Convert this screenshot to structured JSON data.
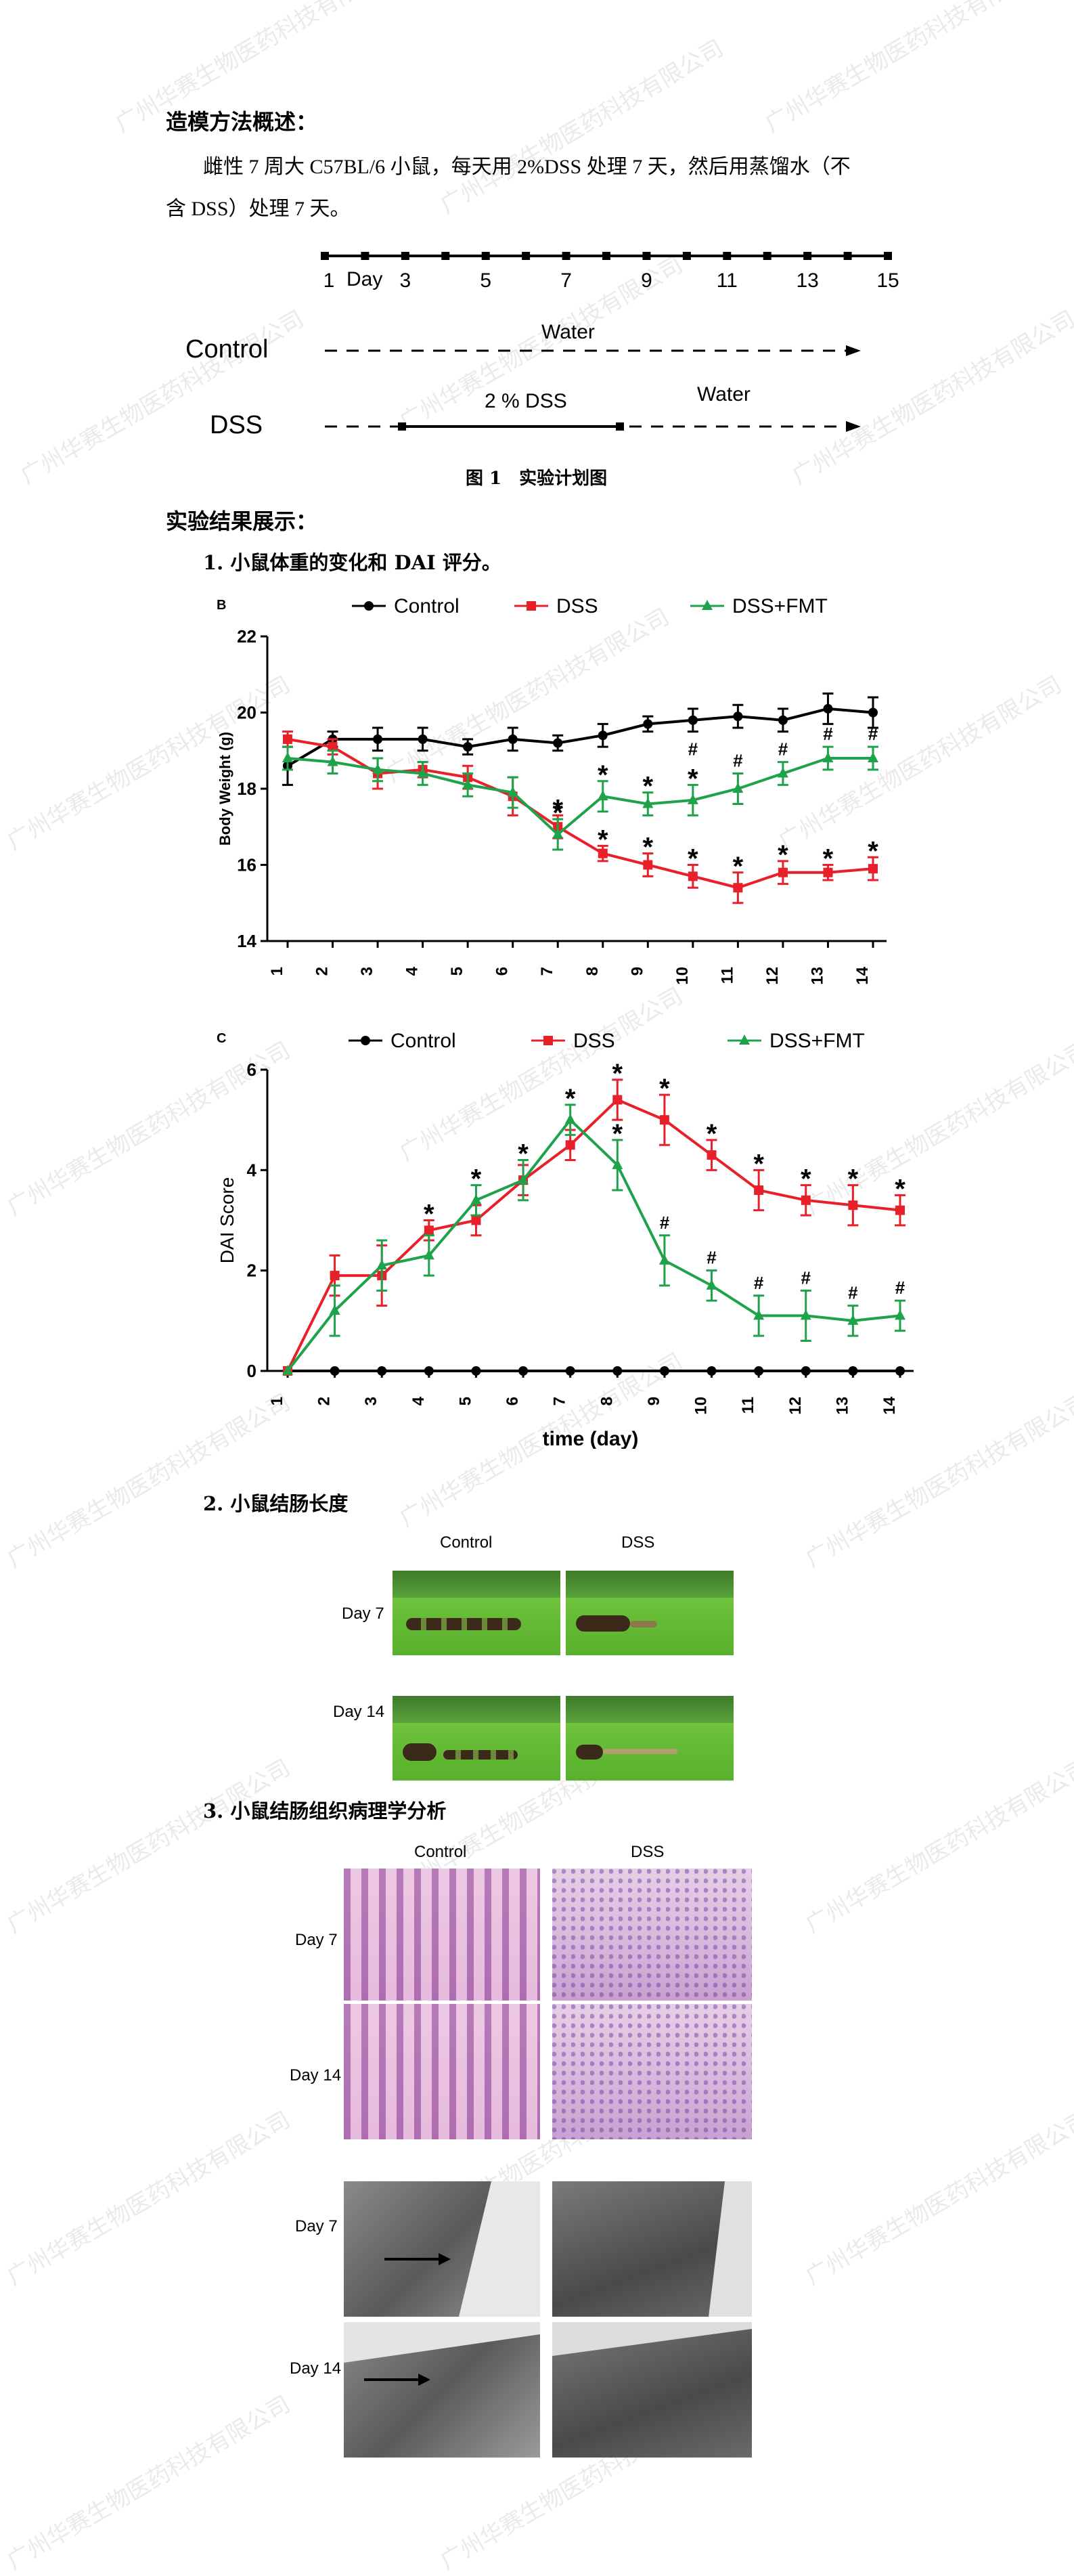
{
  "section1_title": "造模方法概述：",
  "method_text_line1": "雌性 7 周大 C57BL/6 小鼠，每天用 2%DSS 处理 7 天，然后用蒸馏水（不",
  "method_text_line2": "含 DSS）处理 7 天。",
  "timeline": {
    "day_label": "Day",
    "ticks": [
      "1",
      "3",
      "5",
      "7",
      "9",
      "11",
      "13",
      "15"
    ],
    "control_label": "Control",
    "control_water": "Water",
    "dss_label": "DSS",
    "dss_text": "2 % DSS",
    "dss_water": "Water"
  },
  "figure1_caption": "图 1　实验计划图",
  "section2_title": "实验结果展示：",
  "sub1_title": "1.  小鼠体重的变化和 DAI 评分。",
  "chart_data": [
    {
      "type": "line",
      "panel_label": "B",
      "ylabel": "Body Weight (g)",
      "xlabel": "",
      "ylim": [
        14,
        22
      ],
      "yticks": [
        "14",
        "16",
        "18",
        "20",
        "22"
      ],
      "x": [
        1,
        2,
        3,
        4,
        5,
        6,
        7,
        8,
        9,
        10,
        11,
        12,
        13,
        14
      ],
      "legend": "top",
      "series": [
        {
          "name": "Control",
          "color": "#000000",
          "marker": "circle",
          "values": [
            18.6,
            19.3,
            19.3,
            19.3,
            19.1,
            19.3,
            19.2,
            19.4,
            19.7,
            19.8,
            19.9,
            19.8,
            20.1,
            20.0
          ],
          "err": [
            0.5,
            0.2,
            0.3,
            0.3,
            0.2,
            0.3,
            0.2,
            0.3,
            0.2,
            0.3,
            0.3,
            0.3,
            0.4,
            0.4
          ]
        },
        {
          "name": "DSS",
          "color": "#e8202a",
          "marker": "square",
          "values": [
            19.3,
            19.1,
            18.4,
            18.5,
            18.3,
            17.8,
            17.0,
            16.3,
            16.0,
            15.7,
            15.4,
            15.8,
            15.8,
            15.9
          ],
          "err": [
            0.2,
            0.2,
            0.4,
            0.2,
            0.3,
            0.5,
            0.3,
            0.2,
            0.3,
            0.3,
            0.4,
            0.3,
            0.2,
            0.3
          ]
        },
        {
          "name": "DSS+FMT",
          "color": "#1ea24a",
          "marker": "triangle",
          "values": [
            18.8,
            18.7,
            18.5,
            18.4,
            18.1,
            17.9,
            16.8,
            17.8,
            17.6,
            17.7,
            18.0,
            18.4,
            18.8,
            18.8
          ],
          "err": [
            0.3,
            0.3,
            0.3,
            0.3,
            0.3,
            0.4,
            0.4,
            0.4,
            0.3,
            0.4,
            0.4,
            0.3,
            0.3,
            0.3
          ]
        }
      ],
      "annotations": [
        {
          "x": 7,
          "sym": "*",
          "series": "DSS+FMT",
          "pos": "above"
        },
        {
          "x": 7,
          "sym": "*",
          "series": "DSS",
          "pos": "above"
        },
        {
          "x": 8,
          "sym": "*",
          "series": "DSS+FMT",
          "pos": "above"
        },
        {
          "x": 8,
          "sym": "*",
          "series": "DSS",
          "pos": "above"
        },
        {
          "x": 9,
          "sym": "*",
          "series": "DSS+FMT",
          "pos": "above"
        },
        {
          "x": 9,
          "sym": "*",
          "series": "DSS",
          "pos": "above"
        },
        {
          "x": 10,
          "sym": "#",
          "series": "DSS+FMT",
          "pos": "above2"
        },
        {
          "x": 10,
          "sym": "*",
          "series": "DSS+FMT",
          "pos": "above"
        },
        {
          "x": 10,
          "sym": "*",
          "series": "DSS",
          "pos": "above"
        },
        {
          "x": 11,
          "sym": "#",
          "series": "DSS+FMT",
          "pos": "above"
        },
        {
          "x": 11,
          "sym": "*",
          "series": "DSS",
          "pos": "above"
        },
        {
          "x": 12,
          "sym": "#",
          "series": "DSS+FMT",
          "pos": "above"
        },
        {
          "x": 12,
          "sym": "*",
          "series": "DSS",
          "pos": "above"
        },
        {
          "x": 13,
          "sym": "#",
          "series": "DSS+FMT",
          "pos": "above"
        },
        {
          "x": 13,
          "sym": "*",
          "series": "DSS",
          "pos": "above"
        },
        {
          "x": 14,
          "sym": "#",
          "series": "DSS+FMT",
          "pos": "above"
        },
        {
          "x": 14,
          "sym": "*",
          "series": "DSS",
          "pos": "above"
        }
      ]
    },
    {
      "type": "line",
      "panel_label": "C",
      "ylabel": "DAI Score",
      "xlabel": "time (day)",
      "ylim": [
        0,
        6
      ],
      "yticks": [
        "0",
        "2",
        "4",
        "6"
      ],
      "x": [
        1,
        2,
        3,
        4,
        5,
        6,
        7,
        8,
        9,
        10,
        11,
        12,
        13,
        14
      ],
      "legend": "top",
      "series": [
        {
          "name": "Control",
          "color": "#000000",
          "marker": "circle",
          "values": [
            0,
            0,
            0,
            0,
            0,
            0,
            0,
            0,
            0,
            0,
            0,
            0,
            0,
            0
          ],
          "err": [
            0,
            0,
            0,
            0,
            0,
            0,
            0,
            0,
            0,
            0,
            0,
            0,
            0,
            0
          ]
        },
        {
          "name": "DSS",
          "color": "#e8202a",
          "marker": "square",
          "values": [
            0,
            1.9,
            1.9,
            2.8,
            3.0,
            3.8,
            4.5,
            5.4,
            5.0,
            4.3,
            3.6,
            3.4,
            3.3,
            3.2
          ],
          "err": [
            0,
            0.4,
            0.6,
            0.2,
            0.3,
            0.3,
            0.3,
            0.4,
            0.5,
            0.3,
            0.4,
            0.3,
            0.4,
            0.3
          ]
        },
        {
          "name": "DSS+FMT",
          "color": "#1ea24a",
          "marker": "triangle",
          "values": [
            0,
            1.2,
            2.1,
            2.3,
            3.4,
            3.8,
            5.0,
            4.1,
            2.2,
            1.7,
            1.1,
            1.1,
            1.0,
            1.1
          ],
          "err": [
            0,
            0.5,
            0.5,
            0.4,
            0.3,
            0.4,
            0.3,
            0.5,
            0.5,
            0.3,
            0.4,
            0.5,
            0.3,
            0.3
          ]
        }
      ],
      "annotations": [
        {
          "x": 4,
          "sym": "*",
          "series": "DSS",
          "pos": "above"
        },
        {
          "x": 5,
          "sym": "*",
          "series": "DSS+FMT",
          "pos": "above"
        },
        {
          "x": 6,
          "sym": "*",
          "series": "DSS+FMT",
          "pos": "above"
        },
        {
          "x": 7,
          "sym": "*",
          "series": "DSS+FMT",
          "pos": "above"
        },
        {
          "x": 8,
          "sym": "*",
          "series": "DSS",
          "pos": "above"
        },
        {
          "x": 8,
          "sym": "*",
          "series": "DSS+FMT",
          "pos": "above"
        },
        {
          "x": 9,
          "sym": "*",
          "series": "DSS",
          "pos": "above"
        },
        {
          "x": 9,
          "sym": "#",
          "series": "DSS+FMT",
          "pos": "above"
        },
        {
          "x": 10,
          "sym": "*",
          "series": "DSS",
          "pos": "above"
        },
        {
          "x": 10,
          "sym": "#",
          "series": "DSS+FMT",
          "pos": "above"
        },
        {
          "x": 11,
          "sym": "*",
          "series": "DSS",
          "pos": "above"
        },
        {
          "x": 11,
          "sym": "#",
          "series": "DSS+FMT",
          "pos": "above"
        },
        {
          "x": 12,
          "sym": "*",
          "series": "DSS",
          "pos": "above"
        },
        {
          "x": 12,
          "sym": "#",
          "series": "DSS+FMT",
          "pos": "above"
        },
        {
          "x": 13,
          "sym": "*",
          "series": "DSS",
          "pos": "above"
        },
        {
          "x": 13,
          "sym": "#",
          "series": "DSS+FMT",
          "pos": "above"
        },
        {
          "x": 14,
          "sym": "*",
          "series": "DSS",
          "pos": "above"
        },
        {
          "x": 14,
          "sym": "#",
          "series": "DSS+FMT",
          "pos": "above"
        }
      ]
    }
  ],
  "sub2_title": "2.  小鼠结肠长度",
  "colon": {
    "col_control": "Control",
    "col_dss": "DSS",
    "row_day7": "Day 7",
    "row_day14": "Day 14"
  },
  "sub3_title": "3.  小鼠结肠组织病理学分析",
  "histo": {
    "col_control": "Control",
    "col_dss": "DSS",
    "row_day7": "Day 7",
    "row_day14": "Day 14",
    "em_row_day7": "Day 7",
    "em_row_day14": "Day 14"
  },
  "watermark_text": "广州华赛生物医药科技有限公司"
}
